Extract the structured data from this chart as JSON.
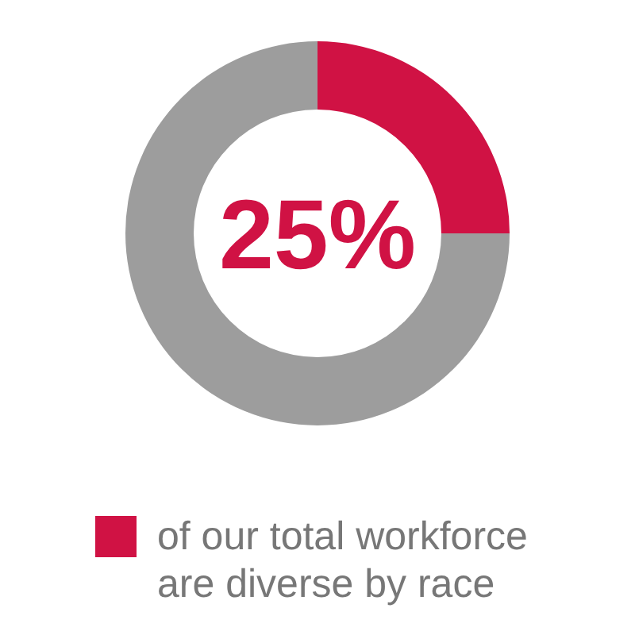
{
  "chart_data": {
    "type": "donut",
    "categories": [
      "of our total workforce are diverse by race",
      null
    ],
    "values": [
      25,
      75
    ],
    "colors": [
      "#d01244",
      "#9d9d9d"
    ],
    "annotations": [
      "25%"
    ],
    "legend": "bottom"
  }
}
